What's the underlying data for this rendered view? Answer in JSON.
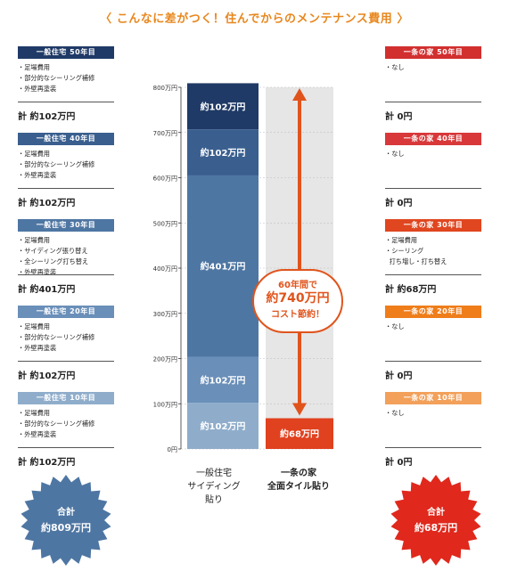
{
  "header": {
    "title": "〈 こんなに差がつく！住んでからのメンテナンス費用 〉"
  },
  "left_panel": {
    "blocks": [
      {
        "header": "一般住宅 50年目",
        "color": "#1f3a66",
        "items": [
          "・足場費用",
          "・部分的なシーリング補修",
          "・外壁再塗装"
        ],
        "total": "計 約102万円"
      },
      {
        "header": "一般住宅 40年目",
        "color": "#3a5f8f",
        "items": [
          "・足場費用",
          "・部分的なシーリング補修",
          "・外壁再塗装"
        ],
        "total": "計 約102万円"
      },
      {
        "header": "一般住宅 30年目",
        "color": "#4e76a3",
        "items": [
          "・足場費用",
          "・サイディング張り替え",
          "・全シーリング打ち替え",
          "・外壁再塗装"
        ],
        "total": "計 約401万円"
      },
      {
        "header": "一般住宅 20年目",
        "color": "#6a8fb9",
        "items": [
          "・足場費用",
          "・部分的なシーリング補修",
          "・外壁再塗装"
        ],
        "total": "計 約102万円"
      },
      {
        "header": "一般住宅 10年目",
        "color": "#8fadcb",
        "items": [
          "・足場費用",
          "・部分的なシーリング補修",
          "・外壁再塗装"
        ],
        "total": "計 約102万円"
      }
    ]
  },
  "right_panel": {
    "blocks": [
      {
        "header": "一条の家 50年目",
        "color": "#d22f2f",
        "items": [
          "・なし"
        ],
        "total": "計 0円"
      },
      {
        "header": "一条の家 40年目",
        "color": "#d8383a",
        "items": [
          "・なし"
        ],
        "total": "計 0円"
      },
      {
        "header": "一条の家 30年目",
        "color": "#e0461f",
        "items": [
          "・足場費用",
          "・シーリング",
          "  打ち増し・打ち替え"
        ],
        "total": "計 約68万円"
      },
      {
        "header": "一条の家 20年目",
        "color": "#ef7d1a",
        "items": [
          "・なし"
        ],
        "total": "計 0円"
      },
      {
        "header": "一条の家 10年目",
        "color": "#f2a05a",
        "items": [
          "・なし"
        ],
        "total": "計 0円"
      }
    ]
  },
  "chart_data": {
    "type": "bar",
    "stacked": true,
    "ylabel": "",
    "yunit": "万円",
    "ylim": [
      0,
      800
    ],
    "yticks": [
      "0円",
      "100万円",
      "200万円",
      "300万円",
      "400万円",
      "500万円",
      "600万円",
      "700万円",
      "800万円"
    ],
    "categories": [
      "一般住宅 サイディング 貼り",
      "一条の家 全面タイル貼り"
    ],
    "category_lines": [
      [
        "一般住宅",
        "サイディング",
        "貼り"
      ],
      [
        "一条の家",
        "全面タイル貼り"
      ]
    ],
    "stacks": [
      {
        "category": "一般住宅 サイディング 貼り",
        "segments": [
          {
            "value": 102,
            "label": "約102万円",
            "color": "#8fadcb"
          },
          {
            "value": 102,
            "label": "約102万円",
            "color": "#6a8fb9"
          },
          {
            "value": 401,
            "label": "約401万円",
            "color": "#4e76a3"
          },
          {
            "value": 102,
            "label": "約102万円",
            "color": "#3a5f8f"
          },
          {
            "value": 102,
            "label": "約102万円",
            "color": "#1f3a66"
          }
        ]
      },
      {
        "category": "一条の家 全面タイル貼り",
        "background_color": "#e6e6e6",
        "segments": [
          {
            "value": 68,
            "label": "約68万円",
            "color": "#e0411f"
          }
        ]
      }
    ],
    "annotation": {
      "lines": [
        "60年間で",
        "約740万円",
        "コスト節約！"
      ],
      "color": "#e0541c"
    }
  },
  "totals": {
    "left": {
      "lines": [
        "合計",
        "約809万円"
      ],
      "color": "#4e76a3"
    },
    "right": {
      "lines": [
        "合計",
        "約68万円"
      ],
      "color": "#e0281c"
    }
  }
}
